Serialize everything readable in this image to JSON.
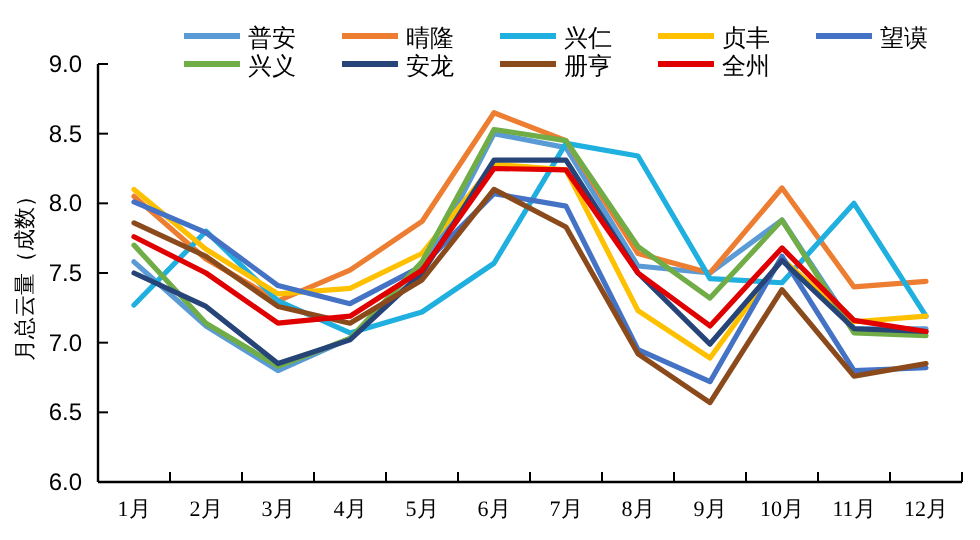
{
  "chart_data": {
    "type": "line",
    "ylabel": "月总云量（成数）",
    "categories": [
      "1月",
      "2月",
      "3月",
      "4月",
      "5月",
      "6月",
      "7月",
      "8月",
      "9月",
      "10月",
      "11月",
      "12月"
    ],
    "ylim": [
      6,
      9
    ],
    "yticks": [
      {
        "value": 6,
        "label": "6.0"
      },
      {
        "value": 6.5,
        "label": "6.5"
      },
      {
        "value": 7,
        "label": "7.0"
      },
      {
        "value": 7.5,
        "label": "7.5"
      },
      {
        "value": 8,
        "label": "8.0"
      },
      {
        "value": 8.5,
        "label": "8.5"
      },
      {
        "value": 9,
        "label": "9.0"
      }
    ],
    "grid": false,
    "legend": "top",
    "marker": "none",
    "line_style": "solid",
    "series": [
      {
        "name": "普安",
        "color": "#5b9bd5",
        "values": [
          7.58,
          7.12,
          6.8,
          7.03,
          7.5,
          8.5,
          8.4,
          7.55,
          7.5,
          7.88,
          7.1,
          7.1
        ]
      },
      {
        "name": "晴隆",
        "color": "#ed7d31",
        "values": [
          8.05,
          7.6,
          7.3,
          7.52,
          7.87,
          8.65,
          8.45,
          7.64,
          7.5,
          8.11,
          7.4,
          7.44
        ]
      },
      {
        "name": "兴仁",
        "color": "#1fb0e0",
        "values": [
          7.27,
          7.8,
          7.3,
          7.07,
          7.22,
          7.57,
          8.43,
          8.34,
          7.46,
          7.43,
          8.0,
          7.19
        ]
      },
      {
        "name": "贞丰",
        "color": "#ffc000",
        "values": [
          8.1,
          7.67,
          7.35,
          7.39,
          7.64,
          8.28,
          8.24,
          7.23,
          6.89,
          7.6,
          7.15,
          7.19
        ]
      },
      {
        "name": "望谟",
        "color": "#4472c4",
        "values": [
          8.01,
          7.79,
          7.41,
          7.28,
          7.55,
          8.07,
          7.98,
          6.95,
          6.72,
          7.62,
          6.8,
          6.82
        ]
      },
      {
        "name": "兴义",
        "color": "#70ad47",
        "values": [
          7.7,
          7.14,
          6.83,
          7.03,
          7.58,
          8.53,
          8.45,
          7.69,
          7.32,
          7.88,
          7.07,
          7.05
        ]
      },
      {
        "name": "安龙",
        "color": "#264478",
        "values": [
          7.5,
          7.26,
          6.85,
          7.02,
          7.5,
          8.31,
          8.31,
          7.5,
          6.99,
          7.59,
          7.1,
          7.08
        ]
      },
      {
        "name": "册亨",
        "color": "#8b4a1c",
        "values": [
          7.86,
          7.62,
          7.26,
          7.14,
          7.45,
          8.1,
          7.83,
          6.92,
          6.57,
          7.38,
          6.76,
          6.85
        ]
      },
      {
        "name": "全州",
        "color": "#e00000",
        "values": [
          7.76,
          7.5,
          7.14,
          7.19,
          7.52,
          8.25,
          8.24,
          7.5,
          7.12,
          7.68,
          7.16,
          7.08
        ]
      }
    ]
  }
}
